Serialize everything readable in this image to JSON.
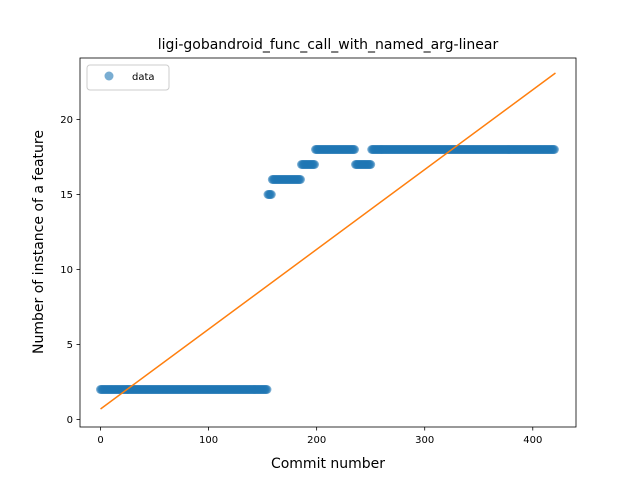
{
  "chart_data": {
    "type": "scatter",
    "title": "ligi-gobandroid_func_call_with_named_arg-linear",
    "xlabel": "Commit number",
    "ylabel": "Number of instance of a feature",
    "xlim": [
      -19,
      440
    ],
    "ylim": [
      -0.5,
      24.1
    ],
    "xticks": [
      0,
      100,
      200,
      300,
      400
    ],
    "yticks": [
      0,
      5,
      10,
      15,
      20
    ],
    "grid": false,
    "legend_position": "top-left",
    "series": [
      {
        "name": "data",
        "kind": "scatter",
        "color": "#1f77b4",
        "segments": [
          {
            "x_start": 0,
            "x_end": 155,
            "y": 2
          },
          {
            "x_start": 155,
            "x_end": 159,
            "y": 15
          },
          {
            "x_start": 159,
            "x_end": 186,
            "y": 16
          },
          {
            "x_start": 186,
            "x_end": 199,
            "y": 17
          },
          {
            "x_start": 199,
            "x_end": 236,
            "y": 18
          },
          {
            "x_start": 236,
            "x_end": 251,
            "y": 17
          },
          {
            "x_start": 251,
            "x_end": 421,
            "y": 18
          }
        ]
      },
      {
        "kind": "line",
        "color": "#ff7f0e",
        "points": [
          [
            0,
            0.7
          ],
          [
            421,
            23.1
          ]
        ]
      }
    ]
  }
}
